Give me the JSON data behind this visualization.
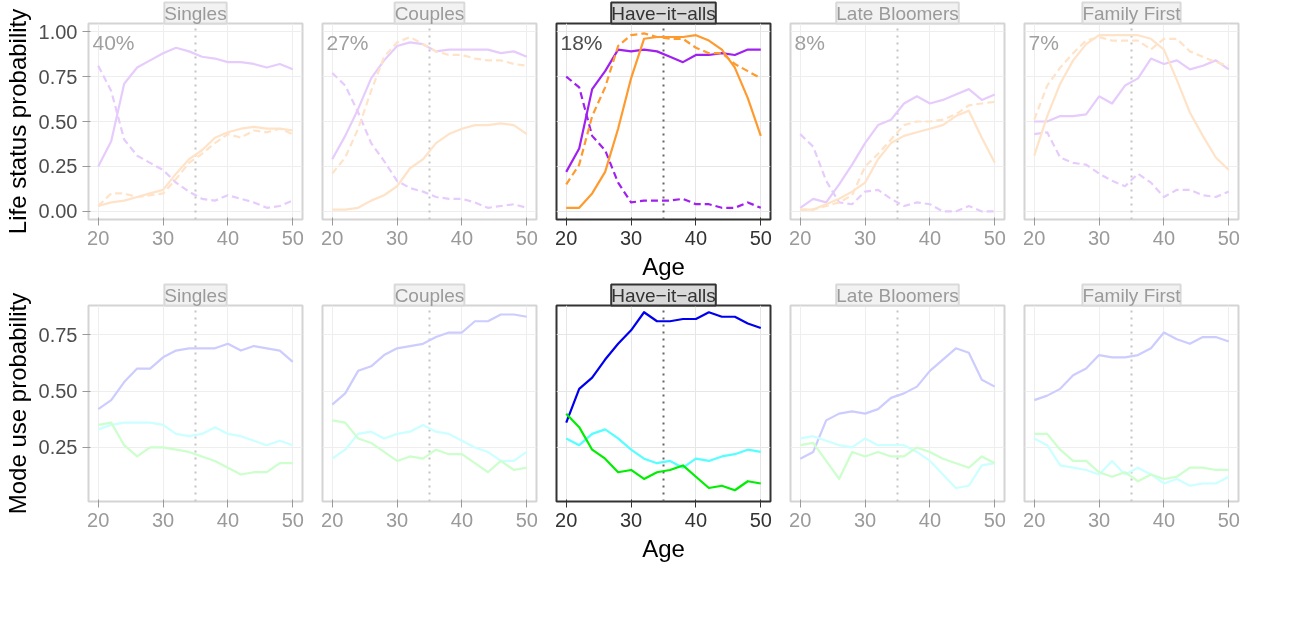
{
  "chart_data": [
    {
      "type": "line",
      "title": "Singles",
      "ylabel": "Life status probability",
      "annotations": [
        "40%"
      ],
      "x": [
        20,
        22,
        24,
        26,
        28,
        30,
        32,
        34,
        36,
        38,
        40,
        42,
        44,
        46,
        48,
        50
      ],
      "xlim": [
        18.5,
        51.5
      ],
      "xticks": [
        20,
        30,
        40,
        50
      ],
      "ylim": [
        -0.045,
        1.045
      ],
      "yticks": [
        {
          "value": 0,
          "label": "0.00"
        },
        0.25,
        {
          "value": 0.5,
          "label": "0.50"
        },
        0.75,
        {
          "value": 1,
          "label": "1.00"
        }
      ],
      "grid": true,
      "ref_lines": [
        {
          "axis": "x",
          "value": 35,
          "line_style": "dotted"
        }
      ],
      "series": [
        {
          "color": "#e6ccfc",
          "values": [
            0.25,
            0.39,
            0.71,
            0.8,
            0.84,
            0.88,
            0.91,
            0.89,
            0.86,
            0.85,
            0.83,
            0.83,
            0.82,
            0.8,
            0.82,
            0.79
          ]
        },
        {
          "color": "#e6ccfc",
          "line_style": "dashed",
          "values": [
            0.81,
            0.67,
            0.4,
            0.31,
            0.27,
            0.23,
            0.16,
            0.11,
            0.07,
            0.06,
            0.09,
            0.07,
            0.05,
            0.02,
            0.03,
            0.06
          ]
        },
        {
          "color": "#ffe3c8",
          "values": [
            0.03,
            0.05,
            0.06,
            0.08,
            0.1,
            0.12,
            0.21,
            0.29,
            0.34,
            0.41,
            0.44,
            0.46,
            0.47,
            0.46,
            0.46,
            0.45
          ]
        },
        {
          "color": "#ffe3c8",
          "line_style": "dashed",
          "values": [
            0.03,
            0.1,
            0.1,
            0.08,
            0.09,
            0.1,
            0.18,
            0.27,
            0.32,
            0.38,
            0.43,
            0.41,
            0.45,
            0.44,
            0.46,
            0.43
          ]
        }
      ]
    },
    {
      "type": "line",
      "title": "Couples",
      "annotations": [
        "27%"
      ],
      "x": [
        20,
        22,
        24,
        26,
        28,
        30,
        32,
        34,
        36,
        38,
        40,
        42,
        44,
        46,
        48,
        50
      ],
      "xlim": [
        18.5,
        51.5
      ],
      "xticks": [
        20,
        30,
        40,
        50
      ],
      "ylim": [
        -0.045,
        1.045
      ],
      "yticks": [
        0,
        0.25,
        0.5,
        0.75,
        1
      ],
      "tick_labels": "x",
      "grid": true,
      "ref_lines": [
        {
          "axis": "x",
          "value": 35,
          "line_style": "dotted"
        }
      ],
      "series": [
        {
          "color": "#e6ccfc",
          "values": [
            0.29,
            0.42,
            0.57,
            0.74,
            0.84,
            0.92,
            0.94,
            0.93,
            0.89,
            0.9,
            0.9,
            0.9,
            0.9,
            0.88,
            0.89,
            0.86
          ]
        },
        {
          "color": "#e6ccfc",
          "line_style": "dashed",
          "values": [
            0.77,
            0.7,
            0.55,
            0.38,
            0.28,
            0.17,
            0.13,
            0.11,
            0.08,
            0.07,
            0.07,
            0.05,
            0.02,
            0.03,
            0.04,
            0.02
          ]
        },
        {
          "color": "#ffe3c8",
          "values": [
            0.01,
            0.01,
            0.02,
            0.06,
            0.09,
            0.14,
            0.24,
            0.29,
            0.38,
            0.43,
            0.46,
            0.48,
            0.48,
            0.49,
            0.48,
            0.43
          ]
        },
        {
          "color": "#ffe3c8",
          "line_style": "dashed",
          "values": [
            0.21,
            0.3,
            0.46,
            0.67,
            0.86,
            0.94,
            0.97,
            0.93,
            0.89,
            0.87,
            0.87,
            0.85,
            0.84,
            0.84,
            0.82,
            0.81
          ]
        }
      ]
    },
    {
      "type": "line",
      "title": "Have−it−alls",
      "xlabel": "Age",
      "annotations": [
        "18%"
      ],
      "x": [
        20,
        22,
        24,
        26,
        28,
        30,
        32,
        34,
        36,
        38,
        40,
        42,
        44,
        46,
        48,
        50
      ],
      "xlim": [
        18.5,
        51.5
      ],
      "xticks": [
        20,
        30,
        40,
        50
      ],
      "ylim": [
        -0.045,
        1.045
      ],
      "yticks": [
        0,
        0.25,
        0.5,
        0.75,
        1
      ],
      "tick_labels": "x",
      "grid": true,
      "ref_lines": [
        {
          "axis": "x",
          "value": 35,
          "line_style": "dotted"
        }
      ],
      "series": [
        {
          "color": "#a020f0",
          "values": [
            0.22,
            0.35,
            0.68,
            0.78,
            0.9,
            0.89,
            0.9,
            0.89,
            0.86,
            0.83,
            0.87,
            0.87,
            0.88,
            0.87,
            0.9,
            0.9
          ]
        },
        {
          "color": "#a020f0",
          "line_style": "dashed",
          "values": [
            0.75,
            0.69,
            0.42,
            0.34,
            0.16,
            0.05,
            0.06,
            0.06,
            0.06,
            0.07,
            0.04,
            0.04,
            0.02,
            0.02,
            0.05,
            0.02
          ]
        },
        {
          "color": "#ff9a2e",
          "values": [
            0.02,
            0.02,
            0.1,
            0.22,
            0.46,
            0.74,
            0.96,
            0.97,
            0.97,
            0.97,
            0.98,
            0.95,
            0.9,
            0.8,
            0.63,
            0.42
          ]
        },
        {
          "color": "#ff9a2e",
          "line_style": "dashed",
          "values": [
            0.15,
            0.26,
            0.53,
            0.69,
            0.92,
            0.98,
            0.99,
            0.97,
            0.96,
            0.96,
            0.91,
            0.88,
            0.88,
            0.82,
            0.78,
            0.74
          ]
        }
      ]
    },
    {
      "type": "line",
      "title": "Late Bloomers",
      "annotations": [
        "8%"
      ],
      "x": [
        20,
        22,
        24,
        26,
        28,
        30,
        32,
        34,
        36,
        38,
        40,
        42,
        44,
        46,
        48,
        50
      ],
      "xlim": [
        18.5,
        51.5
      ],
      "xticks": [
        20,
        30,
        40,
        50
      ],
      "ylim": [
        -0.045,
        1.045
      ],
      "yticks": [
        0,
        0.25,
        0.5,
        0.75,
        1
      ],
      "tick_labels": "x",
      "grid": true,
      "ref_lines": [
        {
          "axis": "x",
          "value": 35,
          "line_style": "dotted"
        }
      ],
      "series": [
        {
          "color": "#e6ccfc",
          "values": [
            0.02,
            0.07,
            0.05,
            0.15,
            0.26,
            0.38,
            0.48,
            0.51,
            0.6,
            0.64,
            0.6,
            0.62,
            0.65,
            0.68,
            0.62,
            0.65
          ]
        },
        {
          "color": "#e6ccfc",
          "line_style": "dashed",
          "values": [
            0.43,
            0.36,
            0.17,
            0.05,
            0.04,
            0.11,
            0.12,
            0.07,
            0.03,
            0.05,
            0.04,
            0.0,
            0.0,
            0.03,
            0.0,
            0.0
          ]
        },
        {
          "color": "#ffe3c8",
          "values": [
            0.01,
            0.01,
            0.04,
            0.07,
            0.11,
            0.16,
            0.29,
            0.38,
            0.42,
            0.44,
            0.46,
            0.48,
            0.53,
            0.56,
            0.41,
            0.27
          ]
        },
        {
          "color": "#ffe3c8",
          "line_style": "dashed",
          "values": [
            0.01,
            0.01,
            0.03,
            0.05,
            0.09,
            0.25,
            0.32,
            0.4,
            0.48,
            0.5,
            0.5,
            0.51,
            0.54,
            0.59,
            0.6,
            0.61
          ]
        }
      ]
    },
    {
      "type": "line",
      "title": "Family First",
      "annotations": [
        "7%"
      ],
      "x": [
        20,
        22,
        24,
        26,
        28,
        30,
        32,
        34,
        36,
        38,
        40,
        42,
        44,
        46,
        48,
        50
      ],
      "xlim": [
        18.5,
        51.5
      ],
      "xticks": [
        20,
        30,
        40,
        50
      ],
      "ylim": [
        -0.045,
        1.045
      ],
      "yticks": [
        0,
        0.25,
        0.5,
        0.75,
        1
      ],
      "tick_labels": "x",
      "grid": true,
      "ref_lines": [
        {
          "axis": "x",
          "value": 35,
          "line_style": "dotted"
        }
      ],
      "series": [
        {
          "color": "#e6ccfc",
          "values": [
            0.5,
            0.5,
            0.53,
            0.53,
            0.54,
            0.64,
            0.6,
            0.7,
            0.74,
            0.85,
            0.82,
            0.84,
            0.79,
            0.81,
            0.84,
            0.79
          ]
        },
        {
          "color": "#e6ccfc",
          "line_style": "dashed",
          "values": [
            0.43,
            0.44,
            0.3,
            0.27,
            0.26,
            0.21,
            0.17,
            0.14,
            0.21,
            0.16,
            0.08,
            0.12,
            0.12,
            0.09,
            0.08,
            0.11
          ]
        },
        {
          "color": "#ffe3c8",
          "values": [
            0.31,
            0.53,
            0.71,
            0.84,
            0.93,
            0.98,
            0.98,
            0.98,
            0.98,
            0.96,
            0.9,
            0.73,
            0.55,
            0.42,
            0.3,
            0.23
          ]
        },
        {
          "color": "#ffe3c8",
          "line_style": "dashed",
          "values": [
            0.51,
            0.7,
            0.8,
            0.88,
            0.95,
            0.97,
            0.95,
            0.95,
            0.95,
            0.9,
            0.96,
            0.96,
            0.89,
            0.86,
            0.83,
            0.81
          ]
        }
      ]
    },
    {
      "type": "line",
      "title": "Singles",
      "ylabel": "Mode use probability",
      "x": [
        20,
        22,
        24,
        26,
        28,
        30,
        32,
        34,
        36,
        38,
        40,
        42,
        44,
        46,
        48,
        50
      ],
      "xlim": [
        18.5,
        51.5
      ],
      "xticks": [
        20,
        30,
        40,
        50
      ],
      "ylim": [
        0.01,
        0.88
      ],
      "yticks": [
        0.25,
        {
          "value": 0.5,
          "label": "0.50"
        },
        0.75
      ],
      "grid": true,
      "ref_lines": [
        {
          "axis": "x",
          "value": 35,
          "line_style": "dotted"
        }
      ],
      "series": [
        {
          "color": "#ccccff",
          "values": [
            0.42,
            0.46,
            0.54,
            0.6,
            0.6,
            0.65,
            0.68,
            0.69,
            0.69,
            0.69,
            0.71,
            0.68,
            0.7,
            0.69,
            0.68,
            0.63
          ]
        },
        {
          "color": "#ccffff",
          "values": [
            0.33,
            0.35,
            0.36,
            0.36,
            0.36,
            0.35,
            0.31,
            0.3,
            0.31,
            0.34,
            0.31,
            0.3,
            0.28,
            0.26,
            0.28,
            0.26
          ]
        },
        {
          "color": "#ccffcc",
          "values": [
            0.35,
            0.36,
            0.26,
            0.21,
            0.25,
            0.25,
            0.24,
            0.23,
            0.21,
            0.19,
            0.16,
            0.13,
            0.14,
            0.14,
            0.18,
            0.18
          ]
        }
      ]
    },
    {
      "type": "line",
      "title": "Couples",
      "x": [
        20,
        22,
        24,
        26,
        28,
        30,
        32,
        34,
        36,
        38,
        40,
        42,
        44,
        46,
        48,
        50
      ],
      "xlim": [
        18.5,
        51.5
      ],
      "xticks": [
        20,
        30,
        40,
        50
      ],
      "ylim": [
        0.01,
        0.88
      ],
      "yticks": [
        0.25,
        0.5,
        0.75
      ],
      "tick_labels": "x",
      "grid": true,
      "ref_lines": [
        {
          "axis": "x",
          "value": 35,
          "line_style": "dotted"
        }
      ],
      "series": [
        {
          "color": "#ccccff",
          "values": [
            0.44,
            0.49,
            0.59,
            0.61,
            0.66,
            0.69,
            0.7,
            0.71,
            0.74,
            0.76,
            0.76,
            0.81,
            0.81,
            0.84,
            0.84,
            0.83
          ]
        },
        {
          "color": "#ccffff",
          "values": [
            0.2,
            0.24,
            0.31,
            0.32,
            0.29,
            0.31,
            0.32,
            0.35,
            0.32,
            0.31,
            0.28,
            0.25,
            0.23,
            0.19,
            0.19,
            0.23
          ]
        },
        {
          "color": "#ccffcc",
          "values": [
            0.37,
            0.36,
            0.29,
            0.27,
            0.23,
            0.19,
            0.21,
            0.2,
            0.24,
            0.22,
            0.22,
            0.18,
            0.14,
            0.19,
            0.15,
            0.16
          ]
        }
      ]
    },
    {
      "type": "line",
      "title": "Have−it−alls",
      "xlabel": "Age",
      "x": [
        20,
        22,
        24,
        26,
        28,
        30,
        32,
        34,
        36,
        38,
        40,
        42,
        44,
        46,
        48,
        50
      ],
      "xlim": [
        18.5,
        51.5
      ],
      "xticks": [
        20,
        30,
        40,
        50
      ],
      "ylim": [
        0.01,
        0.88
      ],
      "yticks": [
        0.25,
        0.5,
        0.75
      ],
      "tick_labels": "x",
      "grid": true,
      "ref_lines": [
        {
          "axis": "x",
          "value": 35,
          "line_style": "dotted"
        }
      ],
      "series": [
        {
          "color": "#0000ee",
          "values": [
            0.36,
            0.51,
            0.56,
            0.64,
            0.71,
            0.77,
            0.85,
            0.81,
            0.81,
            0.82,
            0.82,
            0.85,
            0.83,
            0.83,
            0.8,
            0.78
          ]
        },
        {
          "color": "#55ffff",
          "values": [
            0.29,
            0.26,
            0.31,
            0.33,
            0.29,
            0.24,
            0.2,
            0.18,
            0.19,
            0.16,
            0.2,
            0.19,
            0.21,
            0.22,
            0.24,
            0.23
          ]
        },
        {
          "color": "#00ee00",
          "values": [
            0.4,
            0.34,
            0.24,
            0.2,
            0.14,
            0.15,
            0.11,
            0.14,
            0.15,
            0.17,
            0.12,
            0.07,
            0.08,
            0.06,
            0.1,
            0.09
          ]
        }
      ]
    },
    {
      "type": "line",
      "title": "Late Bloomers",
      "x": [
        20,
        22,
        24,
        26,
        28,
        30,
        32,
        34,
        36,
        38,
        40,
        42,
        44,
        46,
        48,
        50
      ],
      "xlim": [
        18.5,
        51.5
      ],
      "xticks": [
        20,
        30,
        40,
        50
      ],
      "ylim": [
        0.01,
        0.88
      ],
      "yticks": [
        0.25,
        0.5,
        0.75
      ],
      "tick_labels": "x",
      "grid": true,
      "ref_lines": [
        {
          "axis": "x",
          "value": 35,
          "line_style": "dotted"
        }
      ],
      "series": [
        {
          "color": "#ccccff",
          "values": [
            0.2,
            0.23,
            0.37,
            0.4,
            0.41,
            0.4,
            0.42,
            0.47,
            0.49,
            0.52,
            0.59,
            0.64,
            0.69,
            0.67,
            0.55,
            0.52
          ]
        },
        {
          "color": "#ccffff",
          "values": [
            0.29,
            0.3,
            0.28,
            0.26,
            0.25,
            0.29,
            0.26,
            0.26,
            0.26,
            0.23,
            0.19,
            0.13,
            0.07,
            0.08,
            0.17,
            0.18
          ]
        },
        {
          "color": "#ccffcc",
          "values": [
            0.26,
            0.27,
            0.19,
            0.11,
            0.23,
            0.21,
            0.23,
            0.21,
            0.21,
            0.25,
            0.23,
            0.2,
            0.18,
            0.16,
            0.21,
            0.18
          ]
        }
      ]
    },
    {
      "type": "line",
      "title": "Family First",
      "x": [
        20,
        22,
        24,
        26,
        28,
        30,
        32,
        34,
        36,
        38,
        40,
        42,
        44,
        46,
        48,
        50
      ],
      "xlim": [
        18.5,
        51.5
      ],
      "xticks": [
        20,
        30,
        40,
        50
      ],
      "ylim": [
        0.01,
        0.88
      ],
      "yticks": [
        0.25,
        0.5,
        0.75
      ],
      "tick_labels": "x",
      "grid": true,
      "ref_lines": [
        {
          "axis": "x",
          "value": 35,
          "line_style": "dotted"
        }
      ],
      "series": [
        {
          "color": "#ccccff",
          "values": [
            0.46,
            0.48,
            0.51,
            0.57,
            0.6,
            0.66,
            0.65,
            0.65,
            0.66,
            0.69,
            0.76,
            0.73,
            0.71,
            0.74,
            0.74,
            0.72
          ]
        },
        {
          "color": "#ccffff",
          "values": [
            0.29,
            0.26,
            0.17,
            0.16,
            0.15,
            0.13,
            0.19,
            0.13,
            0.16,
            0.13,
            0.09,
            0.11,
            0.08,
            0.09,
            0.09,
            0.12
          ]
        },
        {
          "color": "#ccffcc",
          "values": [
            0.31,
            0.31,
            0.24,
            0.19,
            0.19,
            0.14,
            0.12,
            0.14,
            0.1,
            0.13,
            0.11,
            0.12,
            0.16,
            0.16,
            0.15,
            0.15
          ]
        }
      ]
    }
  ]
}
